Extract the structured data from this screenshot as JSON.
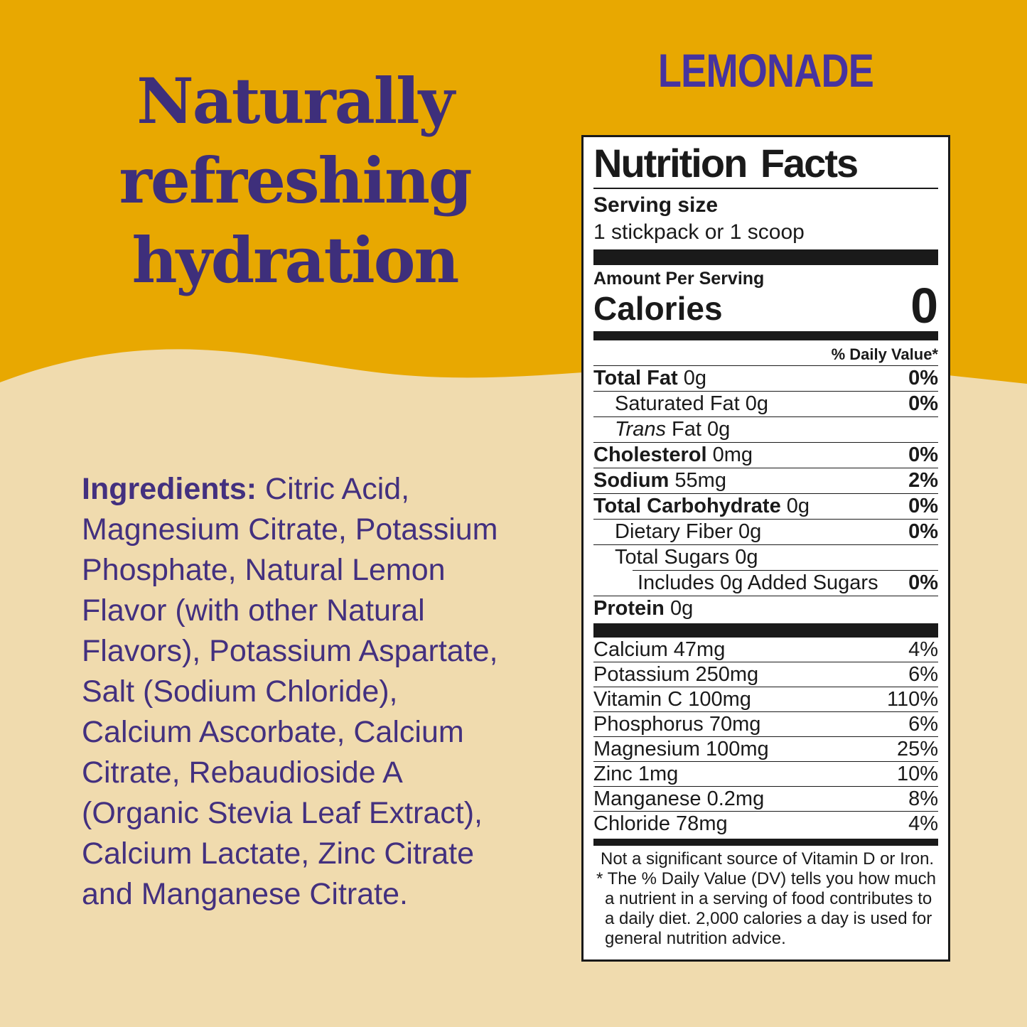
{
  "colors": {
    "band_orange": "#E8A801",
    "cream": "#F0DBAE",
    "headline_purple": "#3E2F7B",
    "flavor_purple": "#4633A0",
    "ingredients_purple": "#43307F",
    "label_ink": "#1A1A1A"
  },
  "flavor_title": "LEMONADE",
  "headline": {
    "line1": "Naturally",
    "line2": "refreshing",
    "line3": "hydration"
  },
  "ingredients": {
    "lines": [
      {
        "b": "Ingredients:",
        "t": " Citric Acid,"
      },
      {
        "b": "",
        "t": "Magnesium Citrate, Potassium"
      },
      {
        "b": "",
        "t": "Phosphate, Natural Lemon"
      },
      {
        "b": "",
        "t": "Flavor (with other Natural"
      },
      {
        "b": "",
        "t": "Flavors), Potassium Aspartate,"
      },
      {
        "b": "",
        "t": "Salt (Sodium Chloride),"
      },
      {
        "b": "",
        "t": "Calcium Ascorbate, Calcium"
      },
      {
        "b": "",
        "t": "Citrate, Rebaudioside A"
      },
      {
        "b": "",
        "t": "(Organic Stevia Leaf Extract),"
      },
      {
        "b": "",
        "t": "Calcium Lactate, Zinc Citrate"
      },
      {
        "b": "",
        "t": "and Manganese Citrate."
      }
    ]
  },
  "nutrition_facts": {
    "title": "Nutrition Facts",
    "serving_size_label": "Serving size",
    "serving_size_value": "1 stickpack or 1 scoop",
    "amount_per_serving": "Amount Per Serving",
    "calories_label": "Calories",
    "calories_value": "0",
    "daily_value_header": "% Daily Value*",
    "rows": [
      {
        "b": "Total Fat",
        "it": "",
        "t": " 0g",
        "dv": "0%",
        "indent": 0,
        "div_indent": false
      },
      {
        "b": "",
        "it": "",
        "t": "Saturated Fat 0g",
        "dv": "0%",
        "indent": 1,
        "div_indent": false
      },
      {
        "b": "",
        "it": "Trans",
        "t": " Fat 0g",
        "dv": "",
        "indent": 1,
        "div_indent": false
      },
      {
        "b": "Cholesterol",
        "it": "",
        "t": " 0mg",
        "dv": "0%",
        "indent": 0,
        "div_indent": false
      },
      {
        "b": "Sodium",
        "it": "",
        "t": " 55mg",
        "dv": "2%",
        "indent": 0,
        "div_indent": false
      },
      {
        "b": "Total Carbohydrate",
        "it": "",
        "t": " 0g",
        "dv": "0%",
        "indent": 0,
        "div_indent": false
      },
      {
        "b": "",
        "it": "",
        "t": "Dietary Fiber 0g",
        "dv": "0%",
        "indent": 1,
        "div_indent": false
      },
      {
        "b": "",
        "it": "",
        "t": "Total Sugars 0g",
        "dv": "",
        "indent": 1,
        "div_indent": false
      },
      {
        "b": "",
        "it": "",
        "t": "Includes 0g Added Sugars",
        "dv": "0%",
        "indent": 2,
        "div_indent": true
      },
      {
        "b": "Protein",
        "it": "",
        "t": " 0g",
        "dv": "",
        "indent": 0,
        "div_indent": false
      }
    ],
    "micronutrients": [
      {
        "t": "Calcium 47mg",
        "dv": "4%"
      },
      {
        "t": "Potassium 250mg",
        "dv": "6%"
      },
      {
        "t": "Vitamin C 100mg",
        "dv": "110%"
      },
      {
        "t": "Phosphorus 70mg",
        "dv": "6%"
      },
      {
        "t": "Magnesium 100mg",
        "dv": "25%"
      },
      {
        "t": "Zinc 1mg",
        "dv": "10%"
      },
      {
        "t": "Manganese 0.2mg",
        "dv": "8%"
      },
      {
        "t": "Chloride 78mg",
        "dv": "4%"
      }
    ],
    "source_note": "Not a significant source of Vitamin D or Iron.",
    "dv_note": "* The % Daily Value (DV) tells you how much a nutrient in a serving of food contributes to a daily diet. 2,000 calories a day is used for general nutrition advice."
  }
}
